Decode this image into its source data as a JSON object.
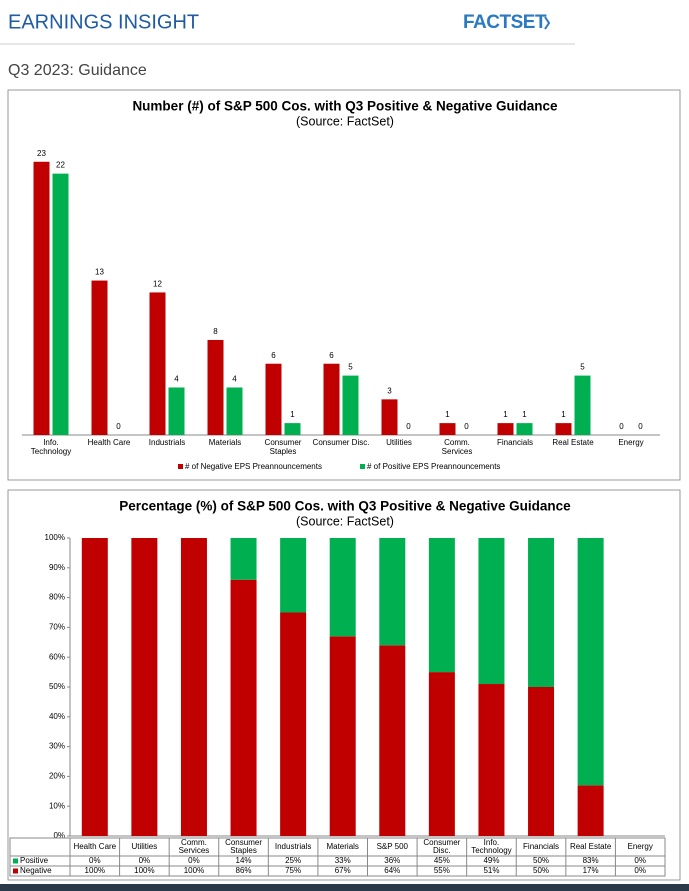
{
  "header": {
    "title": "EARNINGS INSIGHT",
    "logo": "FACTSET",
    "section": "Q3 2023: Guidance"
  },
  "chart_data": [
    {
      "type": "bar",
      "title": "Number (#) of S&P 500 Cos. with Q3 Positive & Negative Guidance",
      "subtitle": "(Source: FactSet)",
      "categories": [
        "Info. Technology",
        "Health Care",
        "Industrials",
        "Materials",
        "Consumer Staples",
        "Consumer Disc.",
        "Utilities",
        "Comm. Services",
        "Financials",
        "Real Estate",
        "Energy"
      ],
      "series": [
        {
          "name": "# of Negative EPS Preannouncements",
          "color": "#c00000",
          "values": [
            23,
            13,
            12,
            8,
            6,
            6,
            3,
            1,
            1,
            1,
            0
          ]
        },
        {
          "name": "# of Positive EPS Preannouncements",
          "color": "#00b050",
          "values": [
            22,
            0,
            4,
            4,
            1,
            5,
            0,
            0,
            1,
            5,
            0
          ]
        }
      ],
      "ylim": [
        0,
        25
      ]
    },
    {
      "type": "stacked_bar",
      "title": "Percentage (%) of S&P 500 Cos. with Q3 Positive & Negative Guidance",
      "subtitle": "(Source: FactSet)",
      "categories": [
        "Health Care",
        "Utilities",
        "Comm. Services",
        "Consumer Staples",
        "Industrials",
        "Materials",
        "S&P 500",
        "Consumer Disc.",
        "Info. Technology",
        "Financials",
        "Real Estate",
        "Energy"
      ],
      "series": [
        {
          "name": "Positive",
          "color": "#00b050",
          "values": [
            0,
            0,
            0,
            14,
            25,
            33,
            36,
            45,
            49,
            50,
            83,
            0
          ],
          "value_labels": [
            "0%",
            "0%",
            "0%",
            "14%",
            "25%",
            "33%",
            "36%",
            "45%",
            "49%",
            "50%",
            "83%",
            "0%"
          ]
        },
        {
          "name": "Negative",
          "color": "#c00000",
          "values": [
            100,
            100,
            100,
            86,
            75,
            67,
            64,
            55,
            51,
            50,
            17,
            0
          ],
          "value_labels": [
            "100%",
            "100%",
            "100%",
            "86%",
            "75%",
            "67%",
            "64%",
            "55%",
            "51%",
            "50%",
            "17%",
            "0%"
          ]
        }
      ],
      "ylim": [
        0,
        100
      ],
      "yticks": [
        {
          "value": 0,
          "label": "0%"
        },
        {
          "value": 10,
          "label": "10%"
        },
        {
          "value": 20,
          "label": "20%"
        },
        {
          "value": 30,
          "label": "30%"
        },
        {
          "value": 40,
          "label": "40%"
        },
        {
          "value": 50,
          "label": "50%"
        },
        {
          "value": 60,
          "label": "60%"
        },
        {
          "value": 70,
          "label": "70%"
        },
        {
          "value": 80,
          "label": "80%"
        },
        {
          "value": 90,
          "label": "90%"
        },
        {
          "value": 100,
          "label": "100%"
        }
      ],
      "grid": false
    }
  ]
}
